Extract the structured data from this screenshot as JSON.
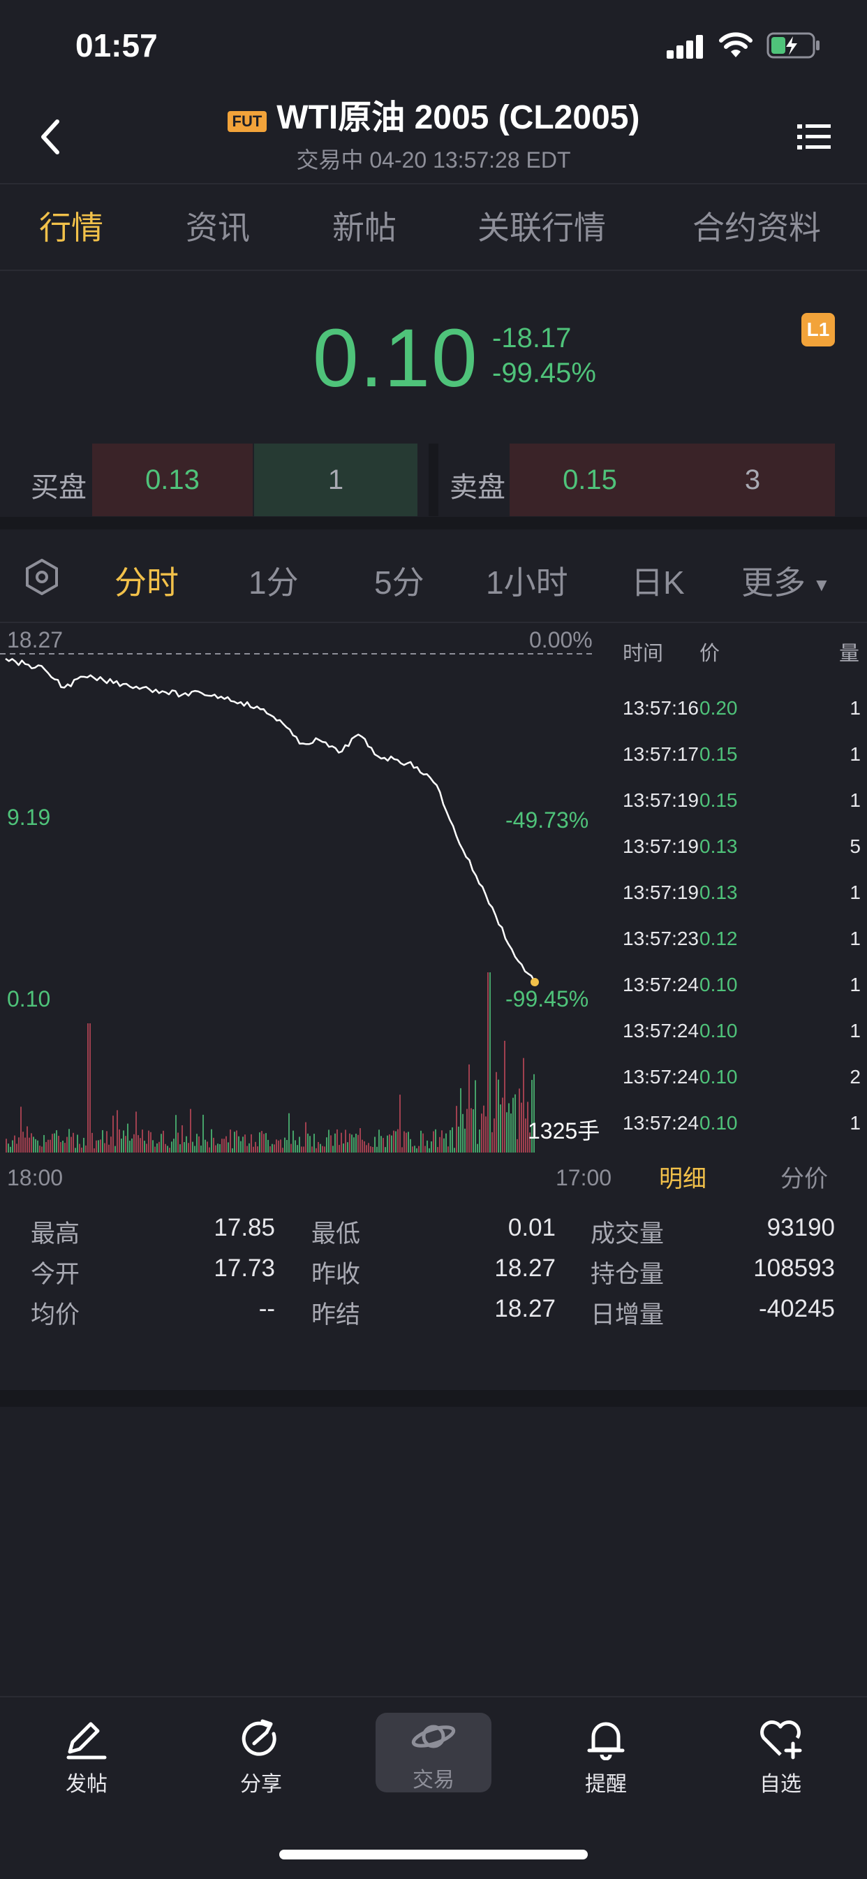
{
  "status": {
    "time": "01:57"
  },
  "header": {
    "badge": "FUT",
    "title": "WTI原油 2005 (CL2005)",
    "subtitle": "交易中 04-20 13:57:28 EDT"
  },
  "tabs": [
    "行情",
    "资讯",
    "新帖",
    "关联行情",
    "合约资料"
  ],
  "quote": {
    "price": "0.10",
    "change": "-18.17",
    "change_pct": "-99.45%",
    "badge": "L1"
  },
  "orderbook": {
    "bid_label": "买盘",
    "bid_price": "0.13",
    "bid_qty": "1",
    "ask_label": "卖盘",
    "ask_price": "0.15",
    "ask_qty": "3"
  },
  "periods": [
    "分时",
    "1分",
    "5分",
    "1小时",
    "日K",
    "更多"
  ],
  "chart": {
    "y_top": "18.27",
    "pct_top": "0.00%",
    "y_mid": "9.19",
    "pct_mid": "-49.73%",
    "y_low": "0.10",
    "pct_low": "-99.45%",
    "volume_label": "1325手",
    "x_start": "18:00",
    "x_end": "17:00"
  },
  "chart_data": {
    "type": "line",
    "xlabel": "",
    "ylabel": "",
    "ylim": [
      0.1,
      18.27
    ],
    "x_range": [
      "18:00",
      "17:00"
    ],
    "price_series": [
      18.0,
      17.7,
      17.4,
      16.4,
      17.0,
      16.8,
      16.6,
      16.4,
      16.2,
      16.0,
      16.1,
      15.9,
      15.6,
      15.2,
      14.6,
      13.3,
      13.5,
      12.8,
      13.8,
      12.6,
      12.4,
      12.0,
      11.0,
      8.2,
      6.0,
      3.8,
      1.5,
      0.1
    ]
  },
  "ticks": {
    "headers": {
      "time": "时间",
      "price": "价",
      "qty": "量"
    },
    "rows": [
      {
        "time": "13:57:16",
        "price": "0.20",
        "qty": "1"
      },
      {
        "time": "13:57:17",
        "price": "0.15",
        "qty": "1"
      },
      {
        "time": "13:57:19",
        "price": "0.15",
        "qty": "1"
      },
      {
        "time": "13:57:19",
        "price": "0.13",
        "qty": "5"
      },
      {
        "time": "13:57:19",
        "price": "0.13",
        "qty": "1"
      },
      {
        "time": "13:57:23",
        "price": "0.12",
        "qty": "1"
      },
      {
        "time": "13:57:24",
        "price": "0.10",
        "qty": "1"
      },
      {
        "time": "13:57:24",
        "price": "0.10",
        "qty": "1"
      },
      {
        "time": "13:57:24",
        "price": "0.10",
        "qty": "2"
      },
      {
        "time": "13:57:24",
        "price": "0.10",
        "qty": "1"
      }
    ],
    "tab_detail": "明细",
    "tab_price": "分价"
  },
  "stats": [
    {
      "label": "最高",
      "value": "17.85"
    },
    {
      "label": "最低",
      "value": "0.01"
    },
    {
      "label": "成交量",
      "value": "93190"
    },
    {
      "label": "今开",
      "value": "17.73"
    },
    {
      "label": "昨收",
      "value": "18.27"
    },
    {
      "label": "持仓量",
      "value": "108593"
    },
    {
      "label": "均价",
      "value": "--"
    },
    {
      "label": "昨结",
      "value": "18.27"
    },
    {
      "label": "日增量",
      "value": "-40245"
    }
  ],
  "nav": [
    {
      "label": "发帖",
      "icon": "pencil-icon"
    },
    {
      "label": "分享",
      "icon": "share-icon"
    },
    {
      "label": "交易",
      "icon": "planet-icon"
    },
    {
      "label": "提醒",
      "icon": "bell-icon"
    },
    {
      "label": "自选",
      "icon": "heart-plus-icon"
    }
  ],
  "colors": {
    "accent": "#f2c14a",
    "up": "#4fc37a",
    "down": "#e05060",
    "bg": "#1e1f26"
  }
}
